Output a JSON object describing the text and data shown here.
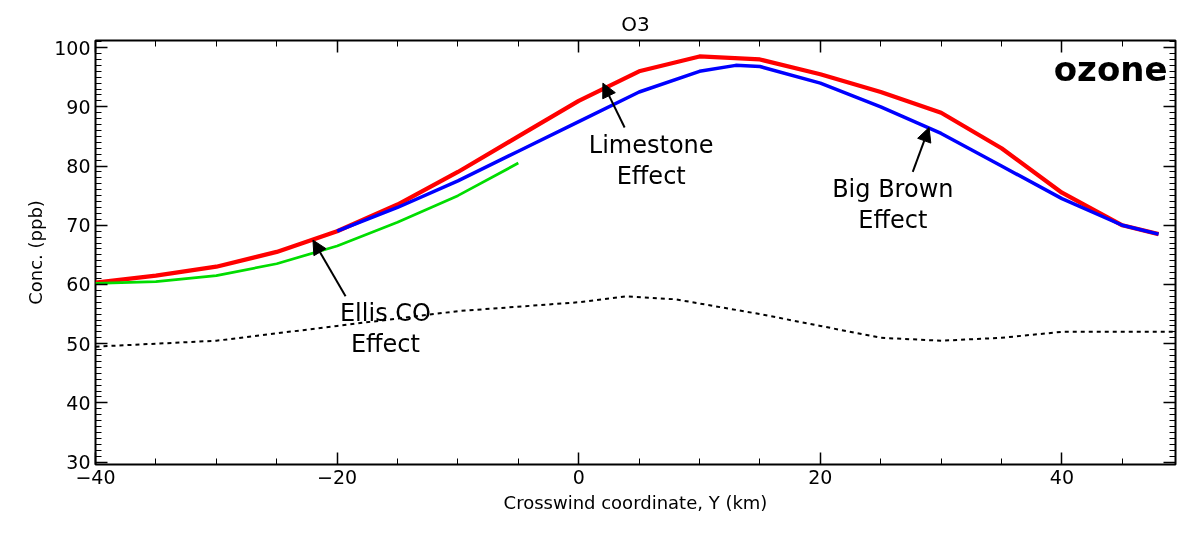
{
  "chart_data": {
    "type": "line",
    "title": "O3",
    "xlabel": "Crosswind coordinate, Y (km)",
    "ylabel": "Conc. (ppb)",
    "xlim": [
      -40,
      49.4
    ],
    "ylim": [
      29.6,
      101.2
    ],
    "xticks": [
      {
        "value": -40,
        "label": "−40"
      },
      {
        "value": -20,
        "label": "−20"
      },
      0,
      20,
      40
    ],
    "yticks": [
      30,
      40,
      50,
      60,
      70,
      80,
      90,
      100
    ],
    "grid": false,
    "series": [
      {
        "color": "#ff0000",
        "line_style": "solid",
        "x": [
          -40,
          -35,
          -30,
          -25,
          -20,
          -15,
          -10,
          -5,
          0,
          5,
          10,
          15,
          20,
          25,
          30,
          35,
          40,
          45,
          48
        ],
        "values": [
          60.3,
          61.5,
          63,
          65.5,
          69,
          73.5,
          79,
          85,
          91,
          96,
          98.5,
          98,
          95.5,
          92.5,
          89,
          83,
          75.5,
          70,
          68.5
        ]
      },
      {
        "color": "#0000ff",
        "line_style": "solid",
        "x": [
          -20,
          -15,
          -10,
          -5,
          0,
          5,
          10,
          13,
          15,
          20,
          25,
          30,
          35,
          40,
          45,
          48
        ],
        "values": [
          69,
          73,
          77.5,
          82.5,
          87.5,
          92.5,
          96,
          97,
          96.8,
          94,
          90,
          85.5,
          80,
          74.5,
          70,
          68.5
        ]
      },
      {
        "color": "#00dd00",
        "line_style": "solid",
        "x": [
          -40,
          -35,
          -30,
          -25,
          -20,
          -15,
          -10,
          -5
        ],
        "values": [
          60.2,
          60.5,
          61.5,
          63.5,
          66.5,
          70.5,
          75,
          80.5
        ]
      },
      {
        "color": "#000000",
        "line_style": "dashed",
        "x": [
          -40,
          -30,
          -20,
          -10,
          0,
          4,
          8,
          15,
          20,
          25,
          30,
          35,
          40,
          49.4
        ],
        "values": [
          49.5,
          50.5,
          53,
          55.5,
          57,
          58,
          57.5,
          55,
          53,
          51,
          50.5,
          51,
          52,
          52
        ]
      }
    ],
    "annotations": [
      "ozone",
      {
        "text": "Ellis CO\nEffect",
        "x": -22,
        "y": 67.5
      },
      {
        "text": "Limestone\nEffect",
        "x": 2,
        "y": 94
      },
      {
        "text": "Big Brown\nEffect",
        "x": 29,
        "y": 86.5
      }
    ]
  }
}
